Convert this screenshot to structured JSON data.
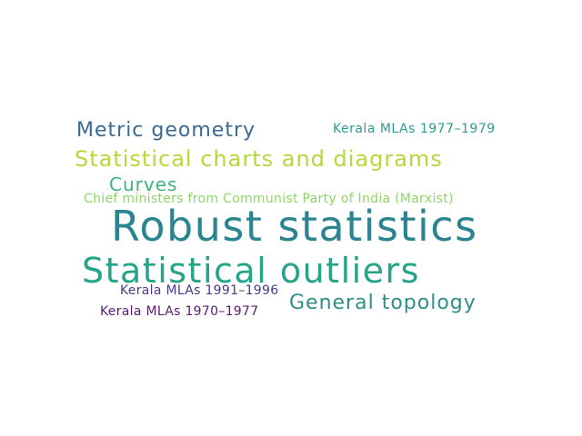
{
  "words": [
    {
      "text": "Metric geometry",
      "color": "#3a6a92"
    },
    {
      "text": "Kerala MLAs 1977–1979",
      "color": "#2f9c8a"
    },
    {
      "text": "Statistical charts and diagrams",
      "color": "#b4d93a"
    },
    {
      "text": "Curves",
      "color": "#3fb27d"
    },
    {
      "text": "Chief ministers from Communist Party of India (Marxist)",
      "color": "#8fd46a"
    },
    {
      "text": "Robust statistics",
      "color": "#2a8591"
    },
    {
      "text": "Statistical outliers",
      "color": "#25a489"
    },
    {
      "text": "Kerala MLAs 1991–1996",
      "color": "#4b3a86"
    },
    {
      "text": "General topology",
      "color": "#2f8f8a"
    },
    {
      "text": "Kerala MLAs 1970–1977",
      "color": "#5a1d6e"
    }
  ]
}
